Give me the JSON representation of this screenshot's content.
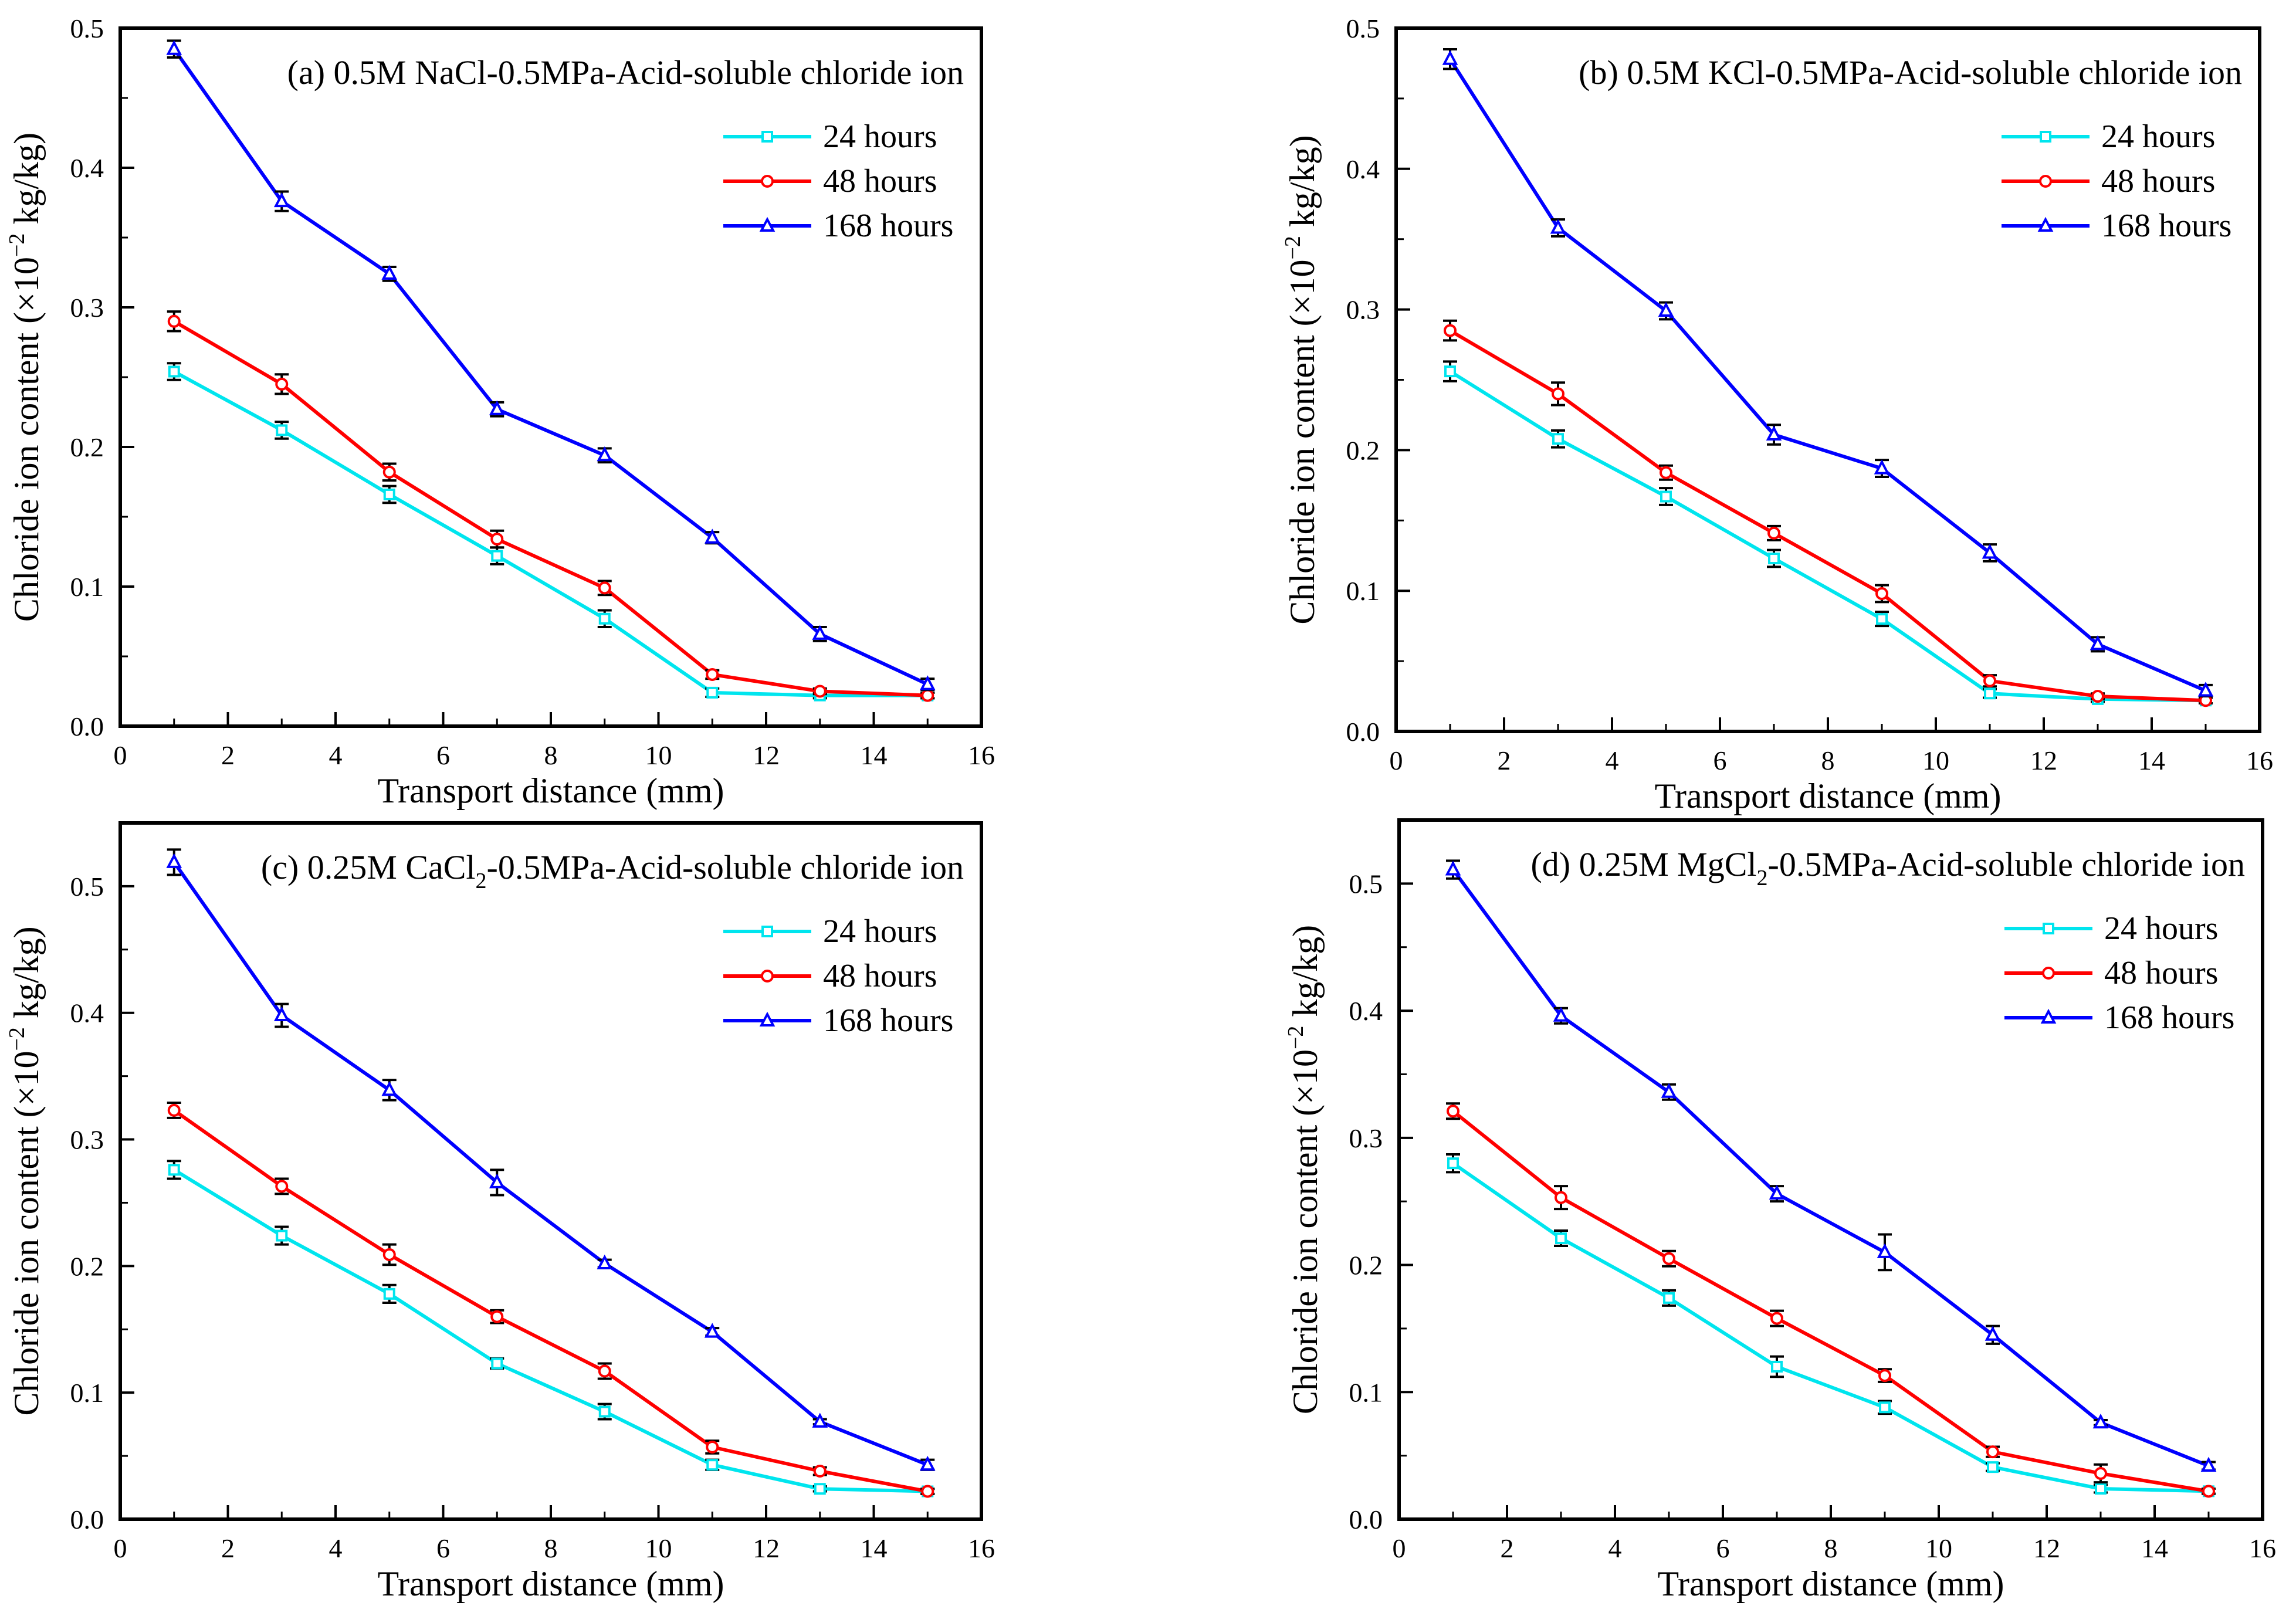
{
  "figure": {
    "label": "Chloride ion content vs transport distance (four panels)"
  },
  "colors": {
    "s24": "#00e5ee",
    "s48": "#ff0000",
    "s168": "#0000ff",
    "axis": "#000000",
    "errbar": "#000000"
  },
  "chart_data": [
    {
      "id": "a",
      "type": "line",
      "title_parts": [
        "(a)  0.5M NaCl-0.5MPa-Acid-soluble chloride ion"
      ],
      "xlabel": "Transport distance (mm)",
      "ylabel_parts": [
        "Chloride ion content (×10",
        "−2",
        " kg/kg)"
      ],
      "xlim": [
        0,
        16
      ],
      "ylim": [
        0,
        0.5
      ],
      "xticks": [
        0,
        2,
        4,
        6,
        8,
        10,
        12,
        14,
        16
      ],
      "yticks": [
        0.0,
        0.1,
        0.2,
        0.3,
        0.4,
        0.5
      ],
      "ytick_labels": [
        "0.0",
        "0.1",
        "0.2",
        "0.3",
        "0.4",
        "0.5"
      ],
      "legend_position": "top-right",
      "x": [
        1,
        3,
        5,
        7,
        9,
        11,
        13,
        15
      ],
      "series": [
        {
          "name": "24 hours",
          "marker": "square",
          "values": [
            0.254,
            0.212,
            0.166,
            0.122,
            0.077,
            0.024,
            0.022,
            0.022
          ],
          "errors": [
            0.006,
            0.006,
            0.006,
            0.006,
            0.006,
            0.003,
            0.002,
            0.002
          ]
        },
        {
          "name": "48 hours",
          "marker": "circle",
          "values": [
            0.29,
            0.245,
            0.182,
            0.134,
            0.099,
            0.037,
            0.025,
            0.022
          ],
          "errors": [
            0.007,
            0.007,
            0.006,
            0.006,
            0.005,
            0.003,
            0.002,
            0.002
          ]
        },
        {
          "name": "168 hours",
          "marker": "triangle",
          "values": [
            0.485,
            0.376,
            0.324,
            0.227,
            0.194,
            0.135,
            0.066,
            0.03
          ],
          "errors": [
            0.006,
            0.007,
            0.005,
            0.005,
            0.005,
            0.004,
            0.005,
            0.004
          ]
        }
      ]
    },
    {
      "id": "b",
      "type": "line",
      "title_parts": [
        "(b)  0.5M KCl-0.5MPa-Acid-soluble chloride ion"
      ],
      "xlabel": "Transport distance (mm)",
      "ylabel_parts": [
        "Chloride ion content (×10",
        "−2",
        " kg/kg)"
      ],
      "xlim": [
        0,
        16
      ],
      "ylim": [
        0,
        0.5
      ],
      "xticks": [
        0,
        2,
        4,
        6,
        8,
        10,
        12,
        14,
        16
      ],
      "yticks": [
        0.0,
        0.1,
        0.2,
        0.3,
        0.4,
        0.5
      ],
      "ytick_labels": [
        "0.0",
        "0.1",
        "0.2",
        "0.3",
        "0.4",
        "0.5"
      ],
      "legend_position": "top-right",
      "x": [
        1,
        3,
        5,
        7,
        9,
        11,
        13,
        15
      ],
      "series": [
        {
          "name": "24 hours",
          "marker": "square",
          "values": [
            0.256,
            0.208,
            0.167,
            0.123,
            0.08,
            0.027,
            0.023,
            0.022
          ],
          "errors": [
            0.007,
            0.006,
            0.006,
            0.006,
            0.005,
            0.003,
            0.002,
            0.002
          ]
        },
        {
          "name": "48 hours",
          "marker": "circle",
          "values": [
            0.285,
            0.24,
            0.184,
            0.141,
            0.098,
            0.036,
            0.025,
            0.022
          ],
          "errors": [
            0.007,
            0.008,
            0.005,
            0.005,
            0.006,
            0.004,
            0.002,
            0.002
          ]
        },
        {
          "name": "168 hours",
          "marker": "triangle",
          "values": [
            0.478,
            0.358,
            0.299,
            0.211,
            0.187,
            0.127,
            0.062,
            0.029
          ],
          "errors": [
            0.007,
            0.006,
            0.006,
            0.007,
            0.006,
            0.006,
            0.005,
            0.004
          ]
        }
      ]
    },
    {
      "id": "c",
      "type": "line",
      "title_parts": [
        "(c)  0.25M CaCl",
        "2",
        "-0.5MPa-Acid-soluble chloride ion"
      ],
      "xlabel": "Transport distance (mm)",
      "ylabel_parts": [
        "Chloride ion content (×10",
        "−2",
        " kg/kg)"
      ],
      "xlim": [
        0,
        16
      ],
      "ylim": [
        0,
        0.55
      ],
      "xticks": [
        0,
        2,
        4,
        6,
        8,
        10,
        12,
        14,
        16
      ],
      "yticks": [
        0.0,
        0.1,
        0.2,
        0.3,
        0.4,
        0.5
      ],
      "ytick_labels": [
        "0.0",
        "0.1",
        "0.2",
        "0.3",
        "0.4",
        "0.5"
      ],
      "legend_position": "top-right",
      "x": [
        1,
        3,
        5,
        7,
        9,
        11,
        13,
        15
      ],
      "series": [
        {
          "name": "24 hours",
          "marker": "square",
          "values": [
            0.276,
            0.224,
            0.178,
            0.123,
            0.085,
            0.043,
            0.024,
            0.022
          ],
          "errors": [
            0.007,
            0.007,
            0.007,
            0.004,
            0.006,
            0.004,
            0.002,
            0.002
          ]
        },
        {
          "name": "48 hours",
          "marker": "circle",
          "values": [
            0.323,
            0.263,
            0.209,
            0.16,
            0.117,
            0.057,
            0.038,
            0.022
          ],
          "errors": [
            0.006,
            0.006,
            0.008,
            0.005,
            0.006,
            0.005,
            0.003,
            0.002
          ]
        },
        {
          "name": "168 hours",
          "marker": "triangle",
          "values": [
            0.519,
            0.398,
            0.339,
            0.266,
            0.202,
            0.148,
            0.077,
            0.043
          ],
          "errors": [
            0.01,
            0.009,
            0.008,
            0.01,
            0.003,
            0.003,
            0.002,
            0.004
          ]
        }
      ]
    },
    {
      "id": "d",
      "type": "line",
      "title_parts": [
        "(d)  0.25M MgCl",
        "2",
        "-0.5MPa-Acid-soluble chloride ion"
      ],
      "xlabel": "Transport distance (mm)",
      "ylabel_parts": [
        "Chloride ion content (×10",
        "−2",
        " kg/kg)"
      ],
      "xlim": [
        0,
        16
      ],
      "ylim": [
        0,
        0.55
      ],
      "xticks": [
        0,
        2,
        4,
        6,
        8,
        10,
        12,
        14,
        16
      ],
      "yticks": [
        0.0,
        0.1,
        0.2,
        0.3,
        0.4,
        0.5
      ],
      "ytick_labels": [
        "0.0",
        "0.1",
        "0.2",
        "0.3",
        "0.4",
        "0.5"
      ],
      "legend_position": "top-right",
      "x": [
        1,
        3,
        5,
        7,
        9,
        11,
        13,
        15
      ],
      "series": [
        {
          "name": "24 hours",
          "marker": "square",
          "values": [
            0.28,
            0.221,
            0.174,
            0.12,
            0.088,
            0.041,
            0.024,
            0.022
          ],
          "errors": [
            0.007,
            0.006,
            0.006,
            0.008,
            0.005,
            0.003,
            0.003,
            0.002
          ]
        },
        {
          "name": "48 hours",
          "marker": "circle",
          "values": [
            0.321,
            0.253,
            0.205,
            0.158,
            0.113,
            0.053,
            0.036,
            0.022
          ],
          "errors": [
            0.006,
            0.009,
            0.006,
            0.006,
            0.005,
            0.004,
            0.007,
            0.002
          ]
        },
        {
          "name": "168 hours",
          "marker": "triangle",
          "values": [
            0.511,
            0.396,
            0.336,
            0.256,
            0.21,
            0.145,
            0.076,
            0.042
          ],
          "errors": [
            0.007,
            0.006,
            0.006,
            0.006,
            0.014,
            0.007,
            0.002,
            0.003
          ]
        }
      ]
    }
  ]
}
